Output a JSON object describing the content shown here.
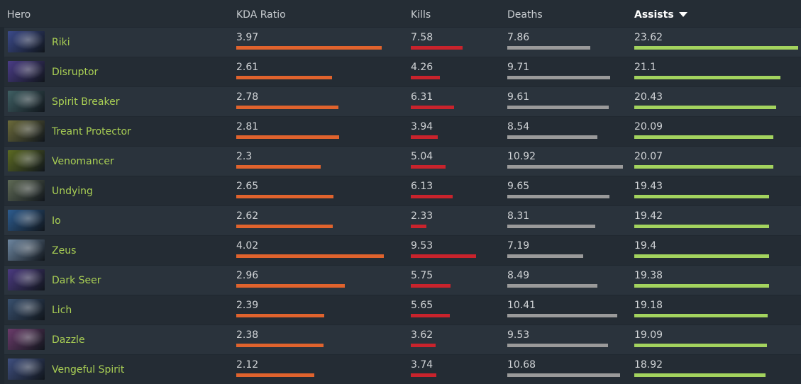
{
  "columns": {
    "hero": "Hero",
    "kda": "KDA Ratio",
    "kills": "Kills",
    "deaths": "Deaths",
    "assists": "Assists"
  },
  "sort": {
    "column": "assists",
    "direction": "descending",
    "icon": "caret-down-icon"
  },
  "colors": {
    "hero_name": "#a9cf54",
    "kda_bar": "#e0632d",
    "kills_bar": "#c9232c",
    "deaths_bar": "#9a9a9a",
    "assists_bar": "#a3d35e"
  },
  "scale_max": {
    "kda": 4.02,
    "kills": 9.53,
    "deaths": 10.92,
    "assists": 23.62
  },
  "rows": [
    {
      "hero": "Riki",
      "portrait": "#3b4a8a",
      "kda": "3.97",
      "kills": "7.58",
      "deaths": "7.86",
      "assists": "23.62"
    },
    {
      "hero": "Disruptor",
      "portrait": "#4a3c86",
      "kda": "2.61",
      "kills": "4.26",
      "deaths": "9.71",
      "assists": "21.1"
    },
    {
      "hero": "Spirit Breaker",
      "portrait": "#3f5f63",
      "kda": "2.78",
      "kills": "6.31",
      "deaths": "9.61",
      "assists": "20.43"
    },
    {
      "hero": "Treant Protector",
      "portrait": "#6b6a3a",
      "kda": "2.81",
      "kills": "3.94",
      "deaths": "8.54",
      "assists": "20.09"
    },
    {
      "hero": "Venomancer",
      "portrait": "#5c6a22",
      "kda": "2.3",
      "kills": "5.04",
      "deaths": "10.92",
      "assists": "20.07"
    },
    {
      "hero": "Undying",
      "portrait": "#5f6a55",
      "kda": "2.65",
      "kills": "6.13",
      "deaths": "9.65",
      "assists": "19.43"
    },
    {
      "hero": "Io",
      "portrait": "#2d5c8f",
      "kda": "2.62",
      "kills": "2.33",
      "deaths": "8.31",
      "assists": "19.42"
    },
    {
      "hero": "Zeus",
      "portrait": "#6d86a0",
      "kda": "4.02",
      "kills": "9.53",
      "deaths": "7.19",
      "assists": "19.4"
    },
    {
      "hero": "Dark Seer",
      "portrait": "#4b3a80",
      "kda": "2.96",
      "kills": "5.75",
      "deaths": "8.49",
      "assists": "19.38"
    },
    {
      "hero": "Lich",
      "portrait": "#39506e",
      "kda": "2.39",
      "kills": "5.65",
      "deaths": "10.41",
      "assists": "19.18"
    },
    {
      "hero": "Dazzle",
      "portrait": "#6a3b6a",
      "kda": "2.38",
      "kills": "3.62",
      "deaths": "9.53",
      "assists": "19.09"
    },
    {
      "hero": "Vengeful Spirit",
      "portrait": "#3f4f7f",
      "kda": "2.12",
      "kills": "3.74",
      "deaths": "10.68",
      "assists": "18.92"
    }
  ]
}
